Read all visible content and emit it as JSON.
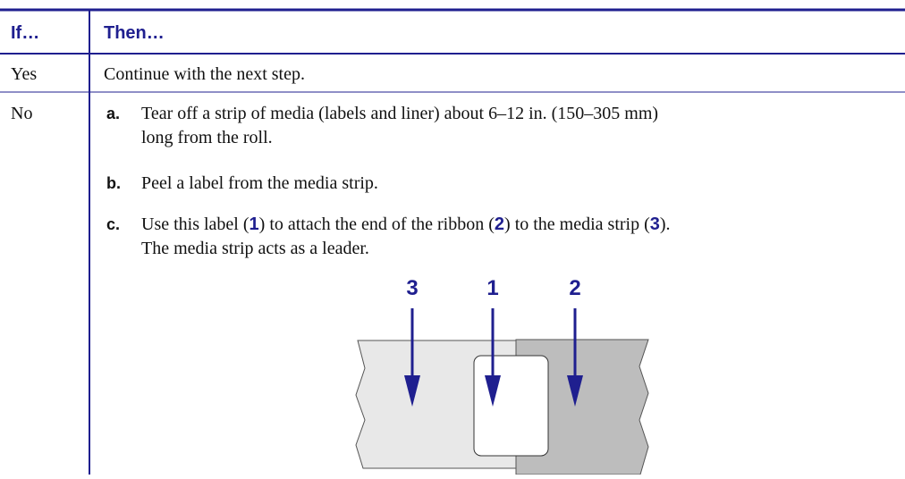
{
  "table": {
    "header": [
      "If…",
      "Then…"
    ],
    "rows": [
      {
        "if": "Yes",
        "then": "Continue with the next step."
      },
      {
        "if": "No",
        "steps": [
          {
            "letter": "a.",
            "lines": [
              "Tear off a strip of media (labels and liner) about 6–12 in. (150–305 mm)",
              "long from the roll."
            ]
          },
          {
            "letter": "b.",
            "lines": [
              "Peel a label from the media strip."
            ]
          },
          {
            "letter": "c.",
            "parts": [
              "Use this label (",
              "1",
              ") to attach the end of the ribbon (",
              "2",
              ") to the media strip (",
              "3",
              ")."
            ],
            "line2": "The media strip acts as a leader."
          }
        ]
      }
    ]
  },
  "figure": {
    "callouts": [
      "3",
      "1",
      "2"
    ]
  }
}
